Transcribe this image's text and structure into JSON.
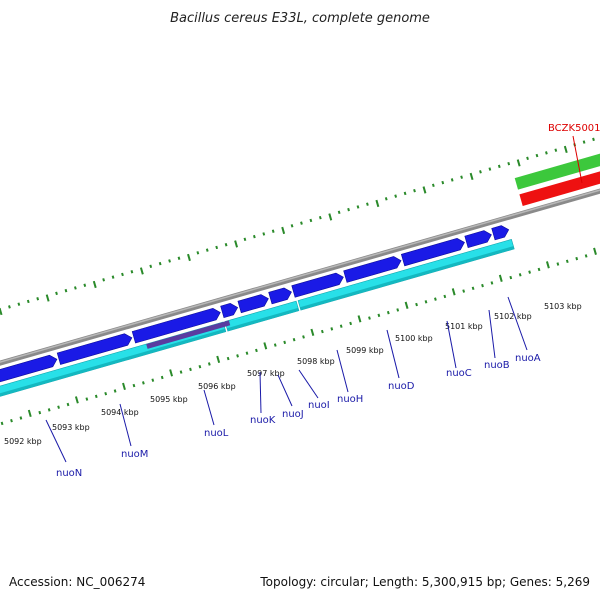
{
  "title": "Bacillus cereus E33L, complete genome",
  "footer": {
    "accession": "Accession: NC_006274",
    "topology": "Topology: circular; Length: 5,300,915 bp; Genes: 5,269"
  },
  "colors": {
    "backbone": "#8a8a8a",
    "forward_gene": "#1a1ae6",
    "cds": "#28e0e8",
    "highlight": "#5a3ca0",
    "green_feature": "#3cc83c",
    "red_feature": "#ee1111",
    "ticks": "#2a8a2a",
    "label_blue": "#1a1aa8",
    "label_red": "#dd0000"
  },
  "scale_labels": [
    "5092 kbp",
    "5093 kbp",
    "5094 kbp",
    "5095 kbp",
    "5096 kbp",
    "5097 kbp",
    "5098 kbp",
    "5099 kbp",
    "5100 kbp",
    "5101 kbp",
    "5102 kbp",
    "5103 kbp"
  ],
  "genes": [
    {
      "name": "nuoN"
    },
    {
      "name": "nuoM"
    },
    {
      "name": "nuoL"
    },
    {
      "name": "nuoK"
    },
    {
      "name": "nuoJ"
    },
    {
      "name": "nuoI"
    },
    {
      "name": "nuoH"
    },
    {
      "name": "nuoD"
    },
    {
      "name": "nuoC"
    },
    {
      "name": "nuoB"
    },
    {
      "name": "nuoA"
    }
  ],
  "other_features": [
    {
      "name": "BCZK5001"
    }
  ]
}
